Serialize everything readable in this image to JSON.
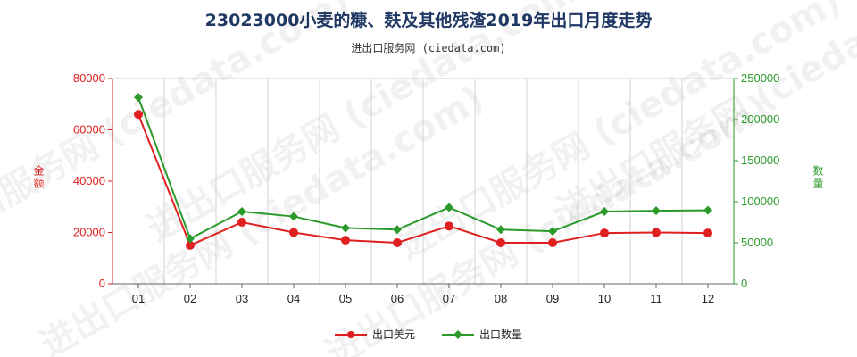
{
  "title": "23023000小麦的糠、麸及其他残渣2019年出口月度走势",
  "subtitle": "进出口服务网 (ciedata.com)",
  "colors": {
    "usd": "#e02020",
    "qty": "#2a9a2a",
    "title": "#1f3864"
  },
  "chart_data": {
    "type": "line",
    "categories": [
      "01",
      "02",
      "03",
      "04",
      "05",
      "06",
      "07",
      "08",
      "09",
      "10",
      "11",
      "12"
    ],
    "ylabel_left": "金额",
    "ylabel_right": "数量",
    "ylim_left": [
      0,
      80000
    ],
    "ylim_right": [
      0,
      250000
    ],
    "yticks_left": [
      0,
      20000,
      40000,
      60000,
      80000
    ],
    "yticks_right": [
      0,
      50000,
      100000,
      150000,
      200000,
      250000
    ],
    "grid": "vertical",
    "legend_position": "bottom",
    "series": [
      {
        "name": "出口美元",
        "axis": "left",
        "color": "#e02020",
        "marker": "circle",
        "values": [
          66000,
          15000,
          24000,
          20000,
          17000,
          16000,
          22500,
          16000,
          16000,
          19800,
          20000,
          19800
        ]
      },
      {
        "name": "出口数量",
        "axis": "right",
        "color": "#2a9a2a",
        "marker": "diamond",
        "values": [
          227000,
          55000,
          88000,
          82000,
          68000,
          66000,
          93000,
          66000,
          64000,
          88000,
          89000,
          89500
        ]
      }
    ]
  }
}
